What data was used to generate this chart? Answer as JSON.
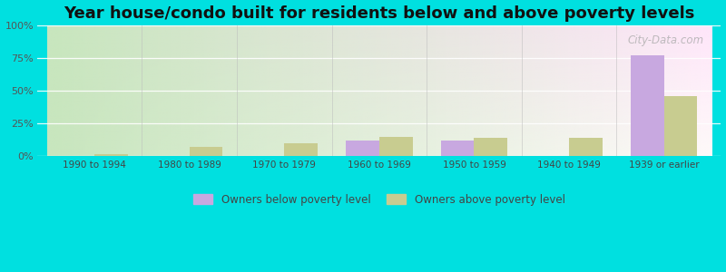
{
  "title": "Year house/condo built for residents below and above poverty levels",
  "categories": [
    "1990 to 1994",
    "1980 to 1989",
    "1970 to 1979",
    "1960 to 1969",
    "1950 to 1959",
    "1940 to 1949",
    "1939 or earlier"
  ],
  "below_poverty": [
    0.5,
    0.0,
    0.0,
    12.0,
    12.0,
    0.0,
    77.0
  ],
  "above_poverty": [
    2.0,
    7.0,
    10.0,
    15.0,
    14.0,
    14.0,
    46.0
  ],
  "below_color": "#c8a8e0",
  "above_color": "#c8cc90",
  "outer_bg": "#00e0e0",
  "ylim": [
    0,
    100
  ],
  "yticks": [
    0,
    25,
    50,
    75,
    100
  ],
  "ytick_labels": [
    "0%",
    "25%",
    "50%",
    "75%",
    "100%"
  ],
  "legend_below": "Owners below poverty level",
  "legend_above": "Owners above poverty level",
  "title_fontsize": 13,
  "bar_width": 0.35,
  "watermark": "City-Data.com"
}
